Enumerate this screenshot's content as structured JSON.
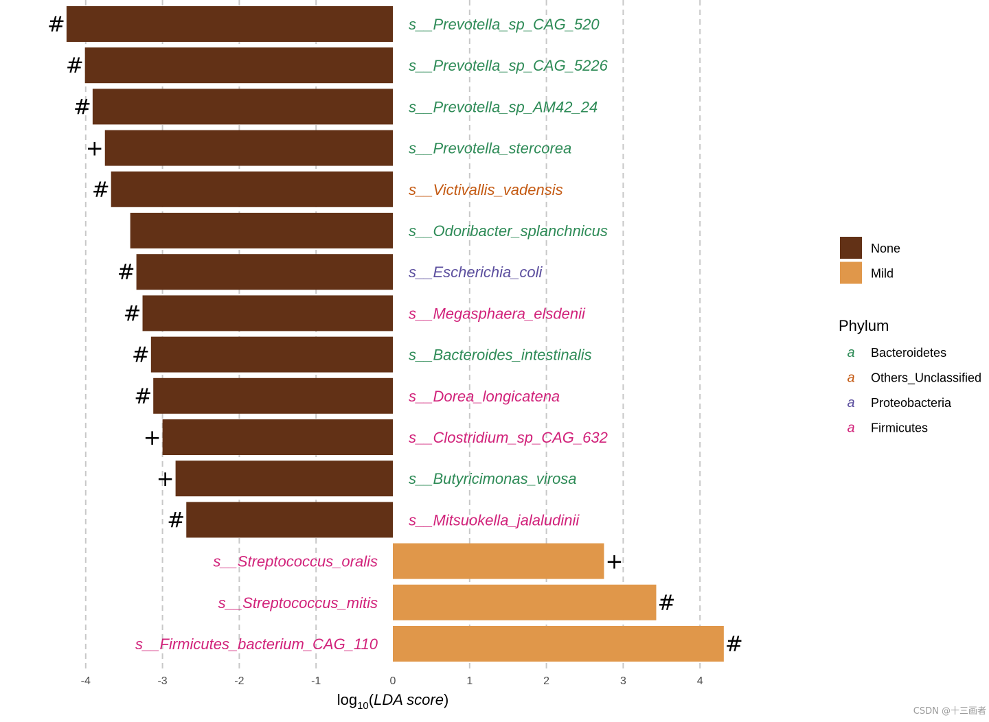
{
  "chart_data": {
    "type": "bar",
    "orientation": "horizontal",
    "xlabel_prefix": "log",
    "xlabel_sub": "10",
    "xlabel_italic": "LDA score",
    "xlim": [
      -4.2,
      4.6
    ],
    "xticks": [
      -4,
      -3,
      -2,
      -1,
      0,
      1,
      2,
      3,
      4
    ],
    "grid_lines_at": [
      -4,
      -3,
      -2,
      -1,
      1,
      2,
      3,
      4
    ],
    "bars": [
      {
        "label": "s__Prevotella_sp_CAG_520",
        "value": -4.25,
        "group": "None",
        "phylum": "Bacteroidetes",
        "marker": "#"
      },
      {
        "label": "s__Prevotella_sp_CAG_5226",
        "value": -4.01,
        "group": "None",
        "phylum": "Bacteroidetes",
        "marker": "#"
      },
      {
        "label": "s__Prevotella_sp_AM42_24",
        "value": -3.91,
        "group": "None",
        "phylum": "Bacteroidetes",
        "marker": "#"
      },
      {
        "label": "s__Prevotella_stercorea",
        "value": -3.75,
        "group": "None",
        "phylum": "Bacteroidetes",
        "marker": "+"
      },
      {
        "label": "s__Victivallis_vadensis",
        "value": -3.67,
        "group": "None",
        "phylum": "Others_Unclassified",
        "marker": "#"
      },
      {
        "label": "s__Odoribacter_splanchnicus",
        "value": -3.42,
        "group": "None",
        "phylum": "Bacteroidetes",
        "marker": ""
      },
      {
        "label": "s__Escherichia_coli",
        "value": -3.34,
        "group": "None",
        "phylum": "Proteobacteria",
        "marker": "#"
      },
      {
        "label": "s__Megasphaera_elsdenii",
        "value": -3.26,
        "group": "None",
        "phylum": "Firmicutes",
        "marker": "#"
      },
      {
        "label": "s__Bacteroides_intestinalis",
        "value": -3.15,
        "group": "None",
        "phylum": "Bacteroidetes",
        "marker": "#"
      },
      {
        "label": "s__Dorea_longicatena",
        "value": -3.12,
        "group": "None",
        "phylum": "Firmicutes",
        "marker": "#"
      },
      {
        "label": "s__Clostridium_sp_CAG_632",
        "value": -3.0,
        "group": "None",
        "phylum": "Firmicutes",
        "marker": "+"
      },
      {
        "label": "s__Butyricimonas_virosa",
        "value": -2.83,
        "group": "None",
        "phylum": "Bacteroidetes",
        "marker": "+"
      },
      {
        "label": "s__Mitsuokella_jalaludinii",
        "value": -2.69,
        "group": "None",
        "phylum": "Firmicutes",
        "marker": "#"
      },
      {
        "label": "s__Streptococcus_oralis",
        "value": 2.75,
        "group": "Mild",
        "phylum": "Firmicutes",
        "marker": "+"
      },
      {
        "label": "s__Streptococcus_mitis",
        "value": 3.43,
        "group": "Mild",
        "phylum": "Firmicutes",
        "marker": "#"
      },
      {
        "label": "s__Firmicutes_bacterium_CAG_110",
        "value": 4.31,
        "group": "Mild",
        "phylum": "Firmicutes",
        "marker": "#"
      }
    ],
    "group_legend": [
      {
        "name": "None",
        "color": "#623116"
      },
      {
        "name": "Mild",
        "color": "#e0974a"
      }
    ],
    "phylum_legend_title": "Phylum",
    "phylum_legend_glyph": "a",
    "phylum_legend": [
      {
        "name": "Bacteroidetes",
        "color": "#2e8b57"
      },
      {
        "name": "Others_Unclassified",
        "color": "#c45a13"
      },
      {
        "name": "Proteobacteria",
        "color": "#5b4e9e"
      },
      {
        "name": "Firmicutes",
        "color": "#d1227a"
      }
    ]
  },
  "watermark": "CSDN @十三画者"
}
